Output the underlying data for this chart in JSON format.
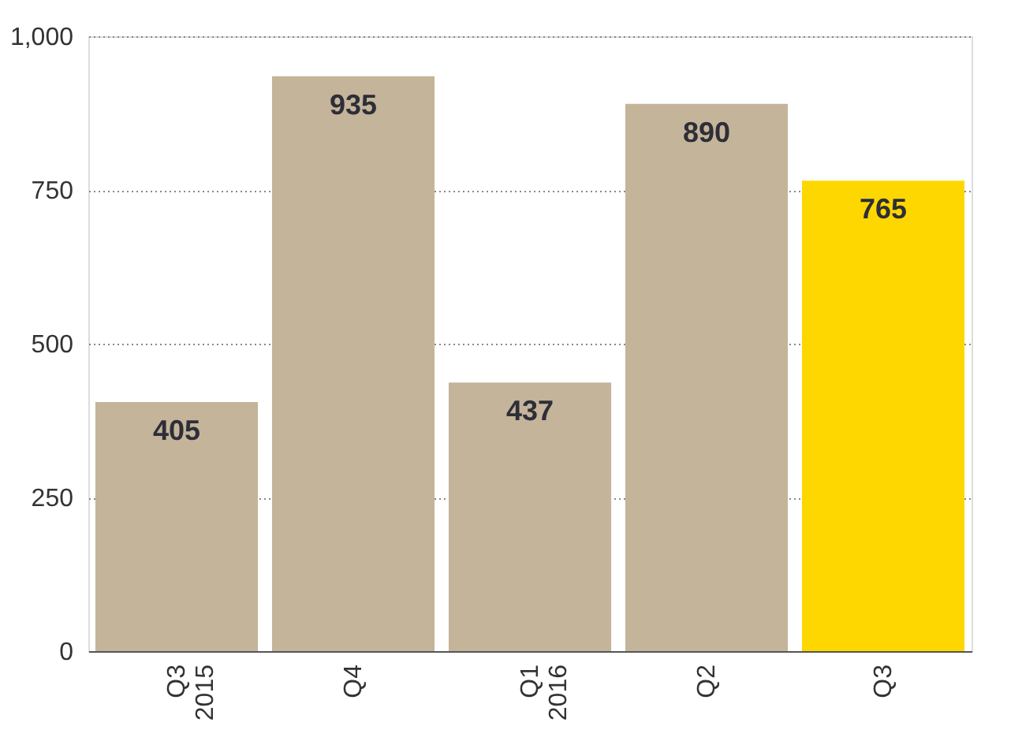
{
  "chart_data": {
    "type": "bar",
    "categories": [
      "Q3\n2015",
      "Q4",
      "Q1\n2016",
      "Q2",
      "Q3"
    ],
    "values": [
      405,
      935,
      437,
      890,
      765
    ],
    "colors": [
      "#c4b49a",
      "#c4b49a",
      "#c4b49a",
      "#c4b49a",
      "#ffd700"
    ],
    "ylim": [
      0,
      1000
    ],
    "yticks": [
      0,
      {
        "value": 250,
        "label": "250"
      },
      {
        "value": 500,
        "label": "500"
      },
      {
        "value": 750,
        "label": "750"
      },
      {
        "value": 1000,
        "label": "1,000"
      }
    ],
    "grid": "y",
    "data_labels": true
  }
}
